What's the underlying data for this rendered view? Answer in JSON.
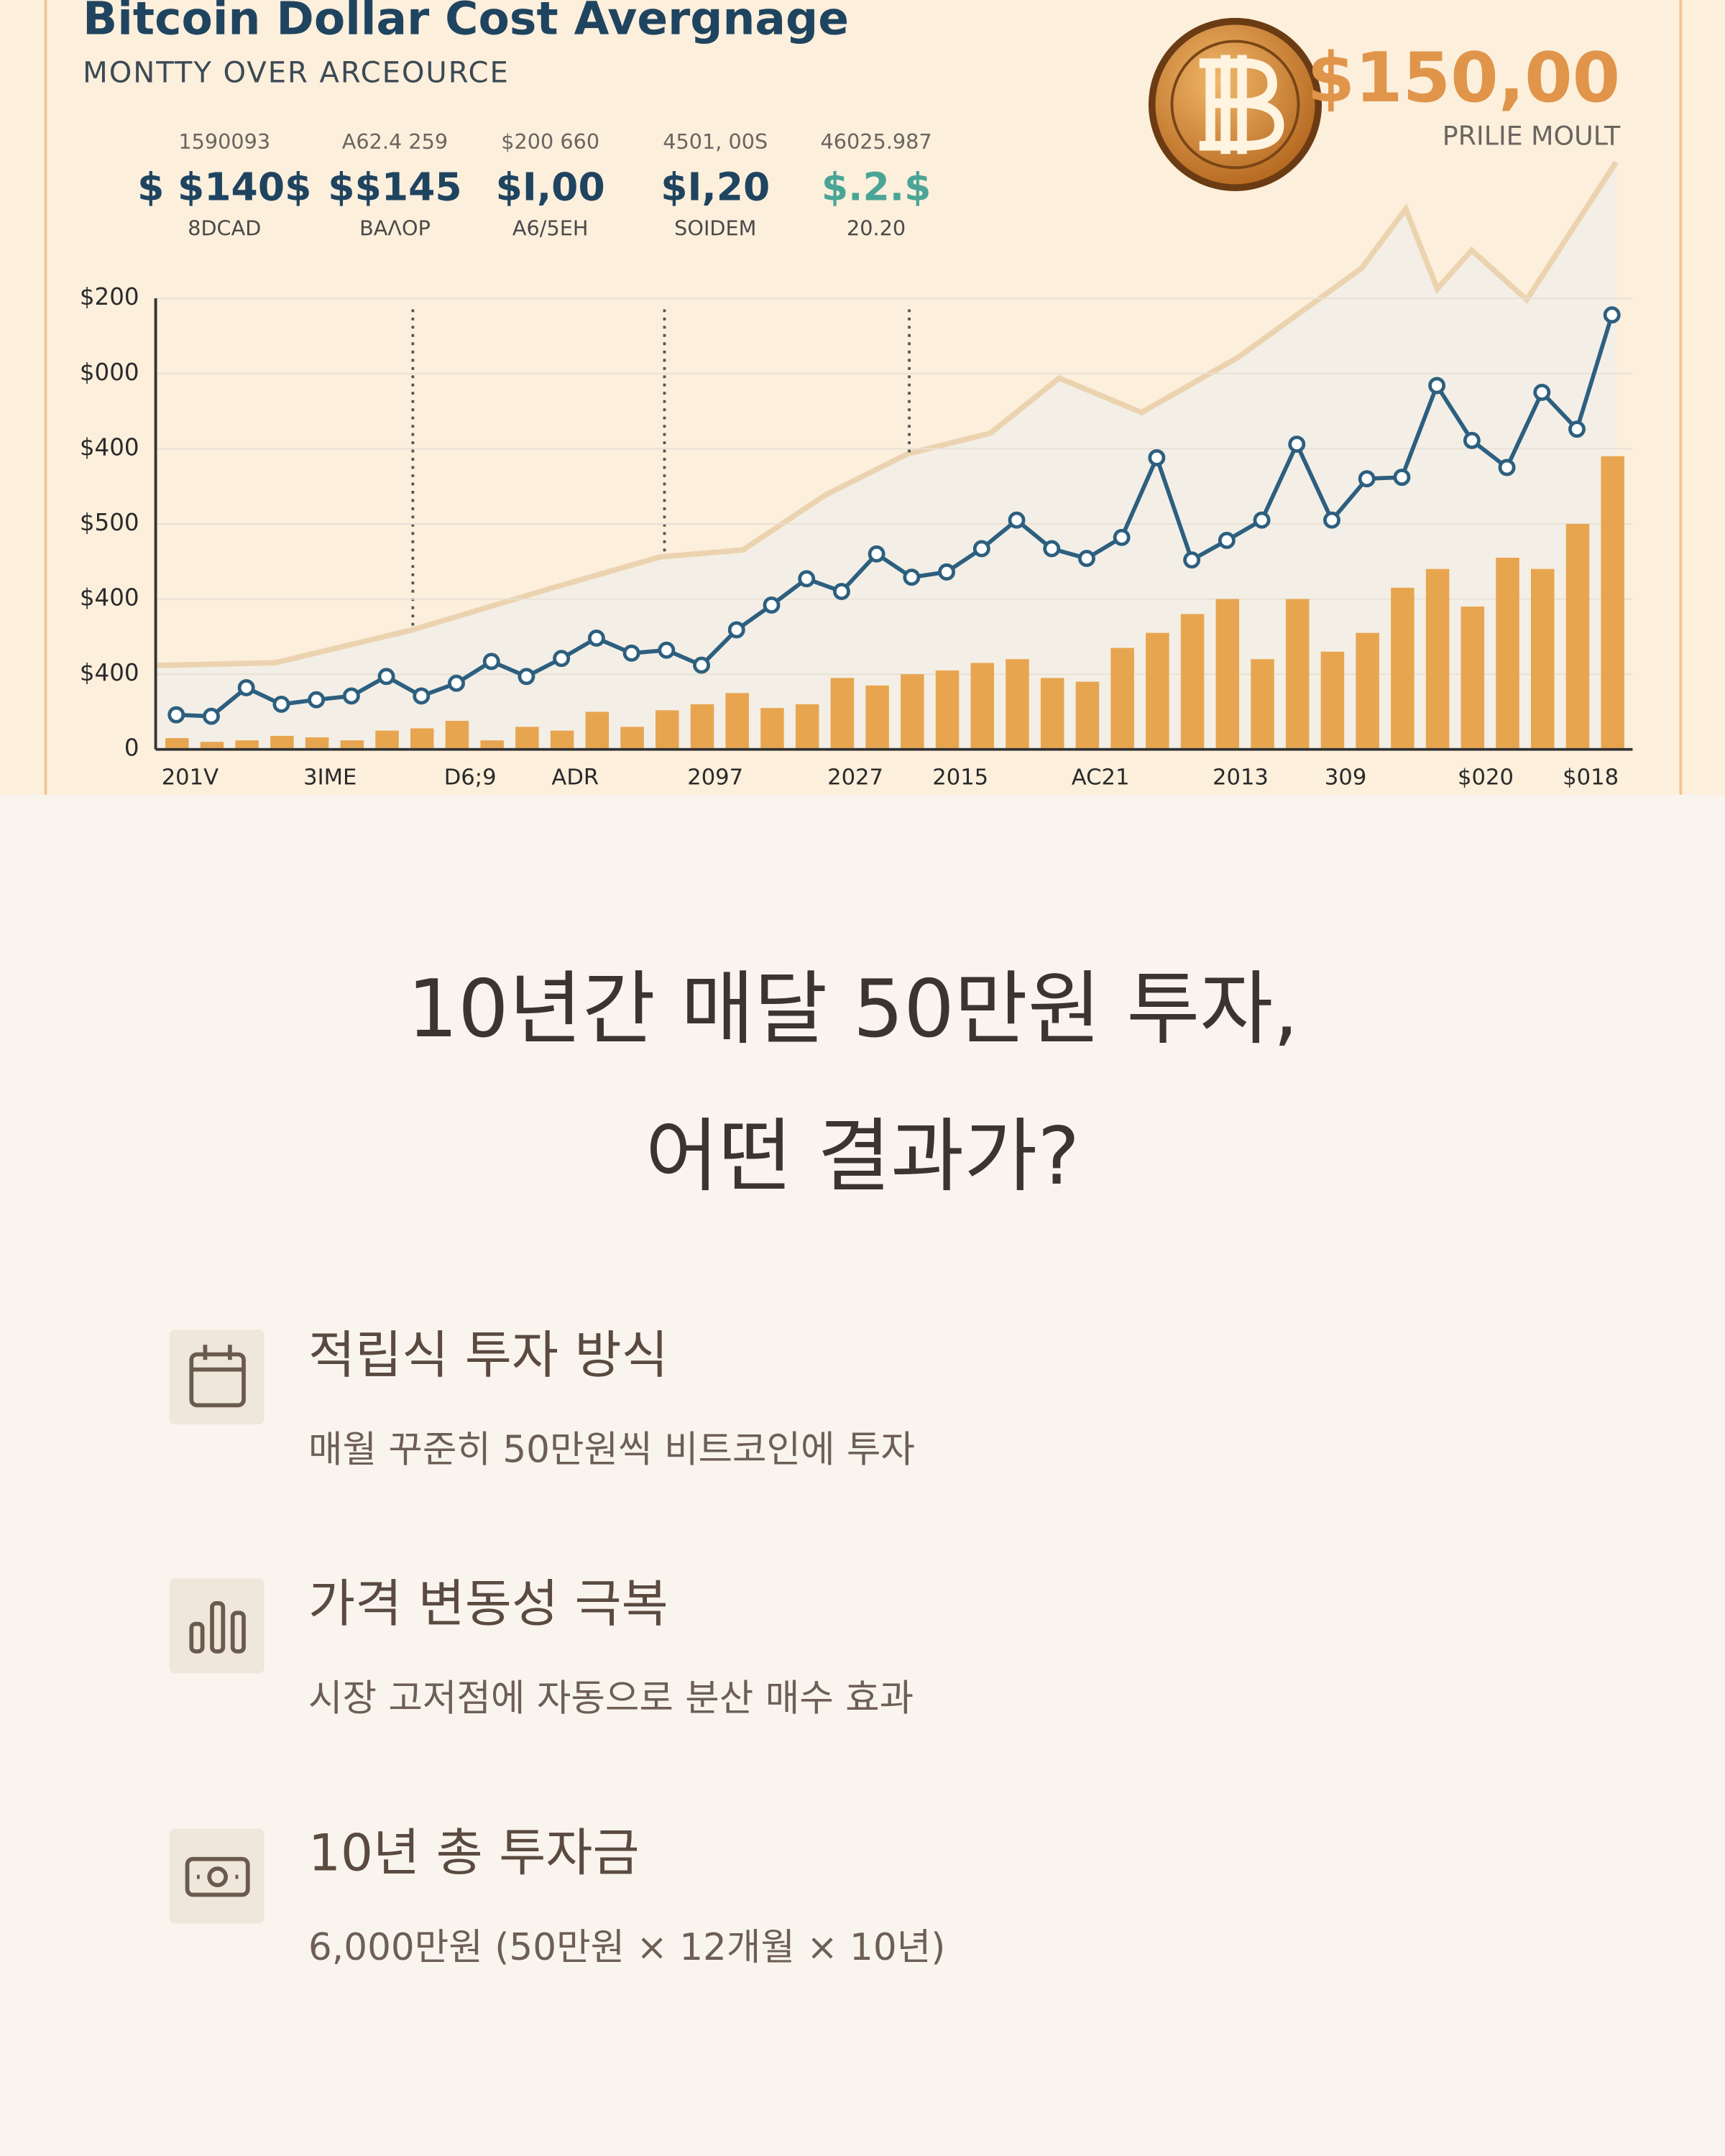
{
  "hero": {
    "title": "Bitcoin Dollar Cost Avergnage",
    "subtitle": "MONTTY OVER ARCEOURCE",
    "price": "$150,00",
    "price_label": "PRILIE MOULT",
    "stats": [
      {
        "top": "1590093",
        "value": "$ $140$",
        "sub": "8DCAD"
      },
      {
        "top": "A62.4 259",
        "value": "$$145",
        "sub": "BAΛOP"
      },
      {
        "top": "$200 660",
        "value": "$I,00",
        "sub": "A6/5EH"
      },
      {
        "top": "4501, 00S",
        "value": "$I,20",
        "sub": "SOIDEM"
      },
      {
        "top": "46025.987",
        "value": "$.2.$",
        "sub": "20.20"
      }
    ]
  },
  "chart_data": {
    "type": "bar_line",
    "series": [
      {
        "type": "bar",
        "color": "#e8a550",
        "values": [
          0.15,
          0.1,
          0.12,
          0.18,
          0.16,
          0.12,
          0.25,
          0.28,
          0.38,
          0.12,
          0.3,
          0.25,
          0.5,
          0.3,
          0.52,
          0.6,
          0.75,
          0.55,
          0.6,
          0.95,
          0.85,
          1.0,
          1.05,
          1.15,
          1.2,
          0.95,
          0.9,
          1.35,
          1.55,
          1.8,
          2.0,
          1.2,
          2.0,
          1.3,
          1.55,
          2.15,
          2.4,
          1.9,
          2.55,
          2.4,
          3.0,
          3.9
        ]
      },
      {
        "type": "line",
        "color": "#2d5f7f",
        "values": [
          0.46,
          0.44,
          0.82,
          0.6,
          0.66,
          0.71,
          0.97,
          0.71,
          0.88,
          1.17,
          0.97,
          1.21,
          1.48,
          1.28,
          1.32,
          1.12,
          1.59,
          1.92,
          2.27,
          2.1,
          2.6,
          2.29,
          2.36,
          2.67,
          3.05,
          2.67,
          2.54,
          2.82,
          3.88,
          2.52,
          2.78,
          3.05,
          4.06,
          3.05,
          3.6,
          3.62,
          4.84,
          4.11,
          3.75,
          4.75,
          4.26,
          5.78
        ]
      }
    ],
    "xlim": [
      -0.5,
      41.5
    ],
    "xticks": [
      {
        "value": 0,
        "label": "201V"
      },
      {
        "value": 4,
        "label": "3IME"
      },
      {
        "value": 8,
        "label": "D6;9"
      },
      {
        "value": 11,
        "label": "ADR"
      },
      {
        "value": 15,
        "label": "2097"
      },
      {
        "value": 19,
        "label": "2027"
      },
      {
        "value": 22,
        "label": "2015"
      },
      {
        "value": 26,
        "label": "AC21"
      },
      {
        "value": 30,
        "label": "2013"
      },
      {
        "value": 33,
        "label": "309"
      },
      {
        "value": 37,
        "label": "$020"
      },
      {
        "value": 40,
        "label": "$018"
      }
    ],
    "ylim": [
      0,
      6
    ],
    "yticks": [
      0,
      {
        "value": 1,
        "label": "$400"
      },
      {
        "value": 2,
        "label": "$400"
      },
      {
        "value": 3,
        "label": "$500"
      },
      {
        "value": 4,
        "label": "$400"
      },
      {
        "value": 5,
        "label": "$000"
      },
      {
        "value": 6,
        "label": "$200"
      }
    ],
    "grid": true
  },
  "heading": [
    "10년간 매달 50만원 투자,",
    "어떤 결과가?"
  ],
  "items": [
    {
      "title": "적립식 투자 방식",
      "description": "매월 꾸준히 50만원씩 비트코인에 투자"
    },
    {
      "title": "가격 변동성 극복",
      "description": "시장 고저점에 자동으로 분산 매수 효과"
    },
    {
      "title": "10년 총 투자금",
      "description": "6,000만원 (50만원 × 12개월 × 10년)"
    }
  ]
}
